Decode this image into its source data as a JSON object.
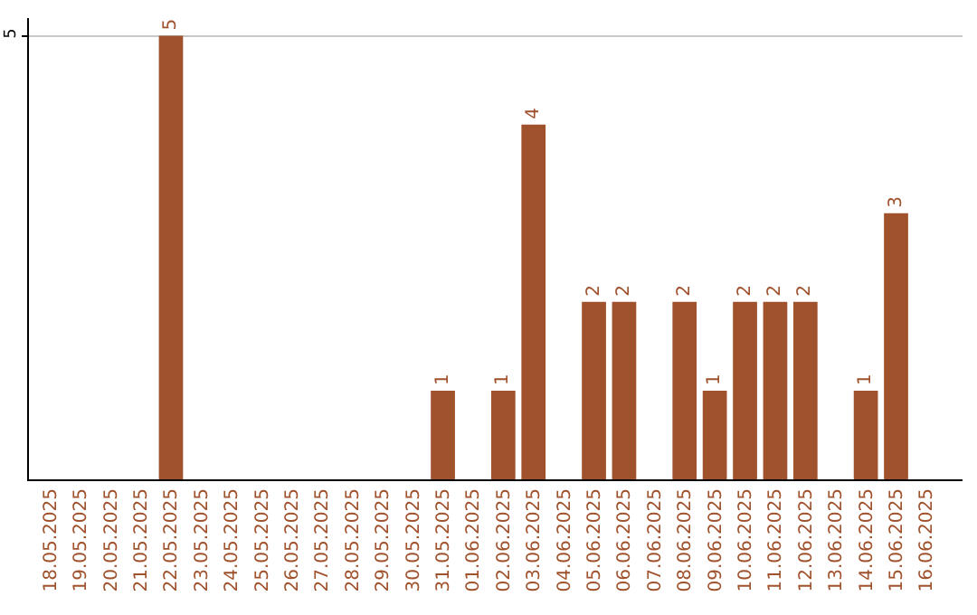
{
  "chart_data": {
    "type": "bar",
    "categories": [
      "18.05.2025",
      "19.05.2025",
      "20.05.2025",
      "21.05.2025",
      "22.05.2025",
      "23.05.2025",
      "24.05.2025",
      "25.05.2025",
      "26.05.2025",
      "27.05.2025",
      "28.05.2025",
      "29.05.2025",
      "30.05.2025",
      "31.05.2025",
      "01.06.2025",
      "02.06.2025",
      "03.06.2025",
      "04.06.2025",
      "05.06.2025",
      "06.06.2025",
      "07.06.2025",
      "08.06.2025",
      "09.06.2025",
      "10.06.2025",
      "11.06.2025",
      "12.06.2025",
      "13.06.2025",
      "14.06.2025",
      "15.06.2025",
      "16.06.2025"
    ],
    "values": [
      null,
      null,
      null,
      null,
      5,
      null,
      null,
      null,
      null,
      null,
      null,
      null,
      null,
      1,
      null,
      1,
      4,
      null,
      2,
      2,
      null,
      2,
      1,
      2,
      2,
      2,
      null,
      1,
      3,
      null
    ],
    "color": "#a0522d",
    "ylim": [
      0,
      5.2
    ],
    "yticks": [
      5
    ],
    "grid": "y",
    "data_labels": true,
    "legend": false
  }
}
